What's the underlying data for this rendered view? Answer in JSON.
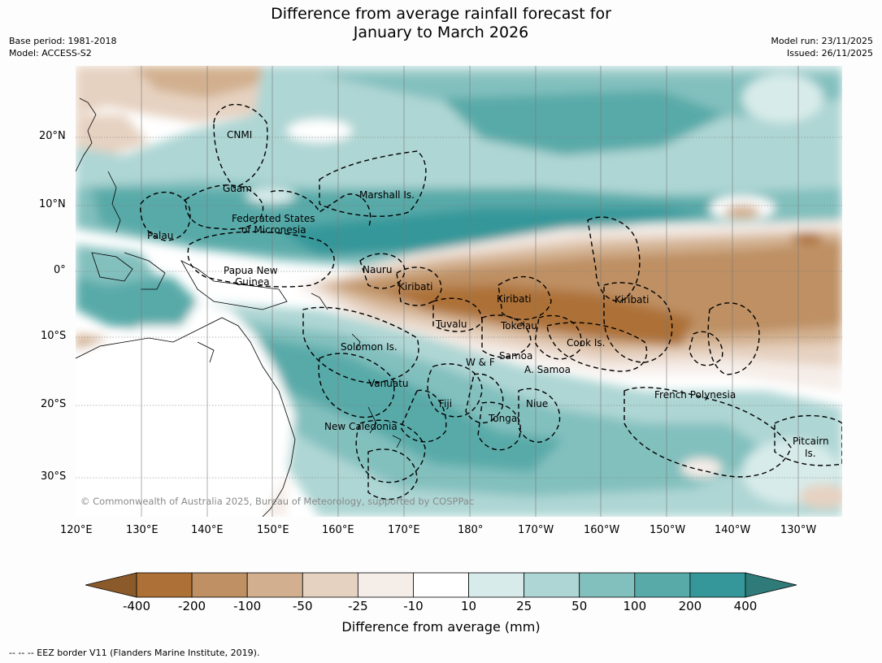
{
  "title_line1": "Difference from average rainfall forecast for",
  "title_line2": "January to March 2026",
  "meta_left": [
    "Base period: 1981-2018",
    "Model: ACCESS-S2"
  ],
  "meta_right": [
    "Model run: 23/11/2025",
    "Issued: 26/11/2025"
  ],
  "lat_labels": [
    "20°N",
    "10°N",
    "0°",
    "10°S",
    "20°S",
    "30°S"
  ],
  "lon_labels": [
    "120°E",
    "130°E",
    "140°E",
    "150°E",
    "160°E",
    "170°E",
    "180°",
    "170°W",
    "160°W",
    "150°W",
    "140°W",
    "130°W"
  ],
  "regions": [
    "CNMI",
    "Guam",
    "Marshall Is.",
    "Federated States",
    "of Micronesia",
    "Palau",
    "Papua New",
    "Guinea",
    "Nauru",
    "Kiribati",
    "Kiribati",
    "Kiribati",
    "Tuvalu",
    "Tokelau",
    "Cook Is.",
    "Solomon Is.",
    "W & F",
    "Samoa",
    "A. Samoa",
    "Vanuatu",
    "Fiji",
    "Niue",
    "Tonga",
    "French Polynesia",
    "New Caledonia",
    "Pitcairn",
    "Is."
  ],
  "copyright": "© Commonwealth of Australia 2025, Bureau of Meteorology, supported by COSPPac",
  "colorbar": {
    "labels": [
      "-400",
      "-200",
      "-100",
      "-50",
      "-25",
      "-10",
      "10",
      "25",
      "50",
      "100",
      "200",
      "400"
    ],
    "colors": [
      "#ad7138",
      "#be9063",
      "#d2b08f",
      "#e6d2c1",
      "#f5ede8",
      "#ffffff",
      "#d7ebea",
      "#aed6d4",
      "#82c0be",
      "#58aaa9",
      "#35979a"
    ],
    "low_extend_color": "#8b5a2b",
    "high_extend_color": "#2e7b79",
    "title": "Difference from average (mm)"
  },
  "eez_note": "--  --  -- EEZ border V11 (Flanders Marine Institute, 2019)."
}
